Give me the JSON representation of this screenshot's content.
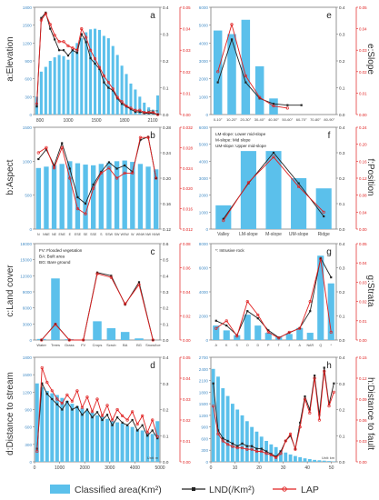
{
  "colors": {
    "bar": "#5bc0eb",
    "lnd": "#222222",
    "lap": "#e02020",
    "frame": "#7a7a7a"
  },
  "side_labels": {
    "a": "a:Elevation",
    "b": "b:Aspect",
    "c": "c:Land cover",
    "d": "d:Distance  to stream",
    "e": "e:Slope",
    "f": "f:Position",
    "g": "g:Strata",
    "h": "h:Distance to fault"
  },
  "legend": {
    "bar": "Classified area(Km²)",
    "lnd": "LND(/Km²)",
    "lap": "LAP"
  },
  "chart_data": [
    {
      "id": "a",
      "type": "bar",
      "title": "",
      "letter": "a",
      "xlabel": "",
      "unit_note": "Unit: m",
      "x_tick_labels": [
        "800",
        "1000",
        "1500",
        "1800",
        "2100"
      ],
      "categories": [
        "800",
        "850",
        "900",
        "950",
        "1000",
        "1050",
        "1100",
        "1150",
        "1200",
        "1250",
        "1300",
        "1350",
        "1400",
        "1450",
        "1500",
        "1550",
        "1600",
        "1650",
        "1700",
        "1750",
        "1800",
        "1850",
        "1900",
        "1950",
        "2000",
        "2050",
        "2100",
        "2150"
      ],
      "ylim_left": [
        0,
        1800
      ],
      "left_ticks": [
        "0",
        "300",
        "600",
        "900",
        "1200",
        "1500",
        "1800"
      ],
      "ylim_r1": [
        0,
        0.4
      ],
      "r1_ticks": [
        "0.0",
        "0.1",
        "0.2",
        "0.3",
        "0.4"
      ],
      "ylim_r2": [
        0,
        0.05
      ],
      "r2_ticks": [
        "0.00",
        "0.01",
        "0.02",
        "0.03",
        "0.04",
        "0.05"
      ],
      "series": [
        {
          "name": "Classified area(Km²)",
          "kind": "bar",
          "axis": "left",
          "values": [
            300,
            720,
            800,
            900,
            960,
            1000,
            980,
            920,
            1100,
            1200,
            1280,
            1380,
            1430,
            1440,
            1420,
            1320,
            1280,
            1150,
            1000,
            820,
            680,
            520,
            420,
            300,
            200,
            120,
            80,
            320
          ]
        },
        {
          "name": "LND(/Km²)",
          "kind": "line",
          "axis": "r1",
          "values": [
            0.03,
            0.36,
            0.38,
            0.32,
            0.28,
            0.24,
            0.24,
            0.22,
            0.24,
            0.23,
            0.3,
            0.27,
            0.21,
            0.19,
            0.17,
            0.12,
            0.1,
            0.09,
            0.06,
            0.04,
            0.03,
            0.02,
            0.01,
            0.01,
            0.005,
            0.005,
            0.005,
            0.0
          ]
        },
        {
          "name": "LAP",
          "kind": "line",
          "axis": "r2",
          "values": [
            0.005,
            0.044,
            0.047,
            0.042,
            0.037,
            0.034,
            0.034,
            0.032,
            0.031,
            0.03,
            0.04,
            0.036,
            0.03,
            0.026,
            0.022,
            0.018,
            0.015,
            0.012,
            0.008,
            0.006,
            0.004,
            0.003,
            0.002,
            0.002,
            0.001,
            0.001,
            0.001,
            0.0
          ]
        }
      ]
    },
    {
      "id": "b",
      "type": "bar",
      "title": "",
      "letter": "b",
      "categories": [
        "N",
        "NNE",
        "NE",
        "ENE",
        "E",
        "ESE",
        "SE",
        "SSE",
        "S",
        "SSW",
        "SW",
        "WSW",
        "W",
        "WNW",
        "NW",
        "NNW"
      ],
      "ylim_left": [
        0,
        1500
      ],
      "left_ticks": [
        "0",
        "500",
        "1000",
        "1500"
      ],
      "ylim_r1": [
        0.12,
        0.28
      ],
      "r1_ticks": [
        "0.12",
        "0.16",
        "0.20",
        "0.24",
        "0.28"
      ],
      "ylim_r2": [
        0.012,
        0.032
      ],
      "r2_ticks": [
        "0.012",
        "0.016",
        "0.020",
        "0.024",
        "0.028",
        "0.032"
      ],
      "series": [
        {
          "name": "Classified area(Km²)",
          "kind": "bar",
          "axis": "left",
          "values": [
            900,
            920,
            940,
            960,
            1000,
            970,
            950,
            940,
            960,
            980,
            1000,
            1010,
            990,
            960,
            920,
            880
          ]
        },
        {
          "name": "LND(/Km²)",
          "kind": "line",
          "axis": "r1",
          "values": [
            0.23,
            0.245,
            0.22,
            0.255,
            0.215,
            0.17,
            0.16,
            0.19,
            0.21,
            0.225,
            0.215,
            0.22,
            0.21,
            0.26,
            0.265,
            0.2
          ]
        },
        {
          "name": "LAP",
          "kind": "line",
          "axis": "r2",
          "values": [
            0.027,
            0.028,
            0.024,
            0.028,
            0.022,
            0.016,
            0.015,
            0.02,
            0.023,
            0.024,
            0.022,
            0.023,
            0.023,
            0.03,
            0.03,
            0.022
          ]
        }
      ]
    },
    {
      "id": "c",
      "type": "bar",
      "title": "",
      "letter": "c",
      "notes": [
        "FV: Flooded vegetation",
        "BA: Built area",
        "BG: Bare ground"
      ],
      "categories": [
        "Water",
        "Trees",
        "Grass",
        "FV",
        "Crops",
        "Scrub",
        "BA",
        "BG",
        "Snow/Ice"
      ],
      "ylim_left": [
        0,
        18000
      ],
      "left_ticks": [
        "0",
        "3000",
        "6000",
        "9000",
        "12000",
        "15000",
        "18000"
      ],
      "ylim_r1": [
        0,
        0.6
      ],
      "r1_ticks": [
        "0.0",
        "0.1",
        "0.2",
        "0.3",
        "0.4",
        "0.5",
        "0.6"
      ],
      "ylim_r2": [
        0,
        0.08
      ],
      "r2_ticks": [
        "0.00",
        "0.02",
        "0.04",
        "0.06",
        "0.08"
      ],
      "series": [
        {
          "name": "Classified area(Km²)",
          "kind": "bar",
          "axis": "left",
          "values": [
            200,
            11500,
            150,
            0,
            3500,
            2200,
            1500,
            300,
            0
          ]
        },
        {
          "name": "LND(/Km²)",
          "kind": "line",
          "axis": "r1",
          "values": [
            0.0,
            0.1,
            0.0,
            0.0,
            0.42,
            0.4,
            0.22,
            0.36,
            0.0
          ]
        },
        {
          "name": "LAP",
          "kind": "line",
          "axis": "r2",
          "values": [
            0.0,
            0.013,
            0.0,
            0.0,
            0.055,
            0.052,
            0.03,
            0.046,
            0.0
          ]
        }
      ]
    },
    {
      "id": "d",
      "type": "bar",
      "title": "",
      "letter": "d",
      "x_tick_labels": [
        "0",
        "1000",
        "2000",
        "3000",
        "4000",
        "5000"
      ],
      "xlim": [
        0,
        5000
      ],
      "unit_note": "Unit: m",
      "ylim_left": [
        0,
        1800
      ],
      "left_ticks": [
        "0",
        "300",
        "600",
        "900",
        "1200",
        "1500",
        "1800"
      ],
      "ylim_r1": [
        0,
        0.4
      ],
      "r1_ticks": [
        "0.0",
        "0.1",
        "0.2",
        "0.3",
        "0.4"
      ],
      "ylim_r2": [
        0,
        0.05
      ],
      "r2_ticks": [
        "0.00",
        "0.01",
        "0.02",
        "0.03",
        "0.04",
        "0.05"
      ],
      "x": [
        100,
        300,
        500,
        700,
        900,
        1100,
        1300,
        1500,
        1700,
        1900,
        2100,
        2300,
        2500,
        2700,
        2900,
        3100,
        3300,
        3500,
        3700,
        3900,
        4100,
        4300,
        4500,
        4700,
        4900
      ],
      "series": [
        {
          "name": "Classified area(Km²)",
          "kind": "bar",
          "axis": "left",
          "values": [
            1350,
            1280,
            1220,
            1180,
            1150,
            1100,
            1050,
            1000,
            960,
            920,
            880,
            850,
            800,
            780,
            740,
            700,
            680,
            660,
            620,
            600,
            560,
            540,
            500,
            480,
            700
          ]
        },
        {
          "name": "LND(/Km²)",
          "kind": "line",
          "axis": "r1",
          "values": [
            0.05,
            0.3,
            0.26,
            0.24,
            0.22,
            0.2,
            0.23,
            0.2,
            0.21,
            0.18,
            0.2,
            0.17,
            0.19,
            0.16,
            0.18,
            0.14,
            0.17,
            0.15,
            0.14,
            0.16,
            0.12,
            0.14,
            0.1,
            0.12,
            0.09
          ]
        },
        {
          "name": "LAP",
          "kind": "line",
          "axis": "r2",
          "values": [
            0.005,
            0.045,
            0.038,
            0.034,
            0.03,
            0.028,
            0.032,
            0.029,
            0.034,
            0.026,
            0.031,
            0.024,
            0.03,
            0.022,
            0.027,
            0.02,
            0.025,
            0.022,
            0.02,
            0.024,
            0.018,
            0.022,
            0.014,
            0.02,
            0.012
          ]
        }
      ]
    },
    {
      "id": "e",
      "type": "bar",
      "title": "",
      "letter": "e",
      "categories": [
        "0-10°",
        "10-20°",
        "20-30°",
        "30-40°",
        "40-50°",
        "50-60°",
        "60-70°",
        "70-80°",
        "80-90°"
      ],
      "ylim_left": [
        0,
        6000
      ],
      "left_ticks": [
        "0",
        "1000",
        "2000",
        "3000",
        "4000",
        "5000",
        "6000"
      ],
      "ylim_r1": [
        0,
        0.4
      ],
      "r1_ticks": [
        "0.0",
        "0.1",
        "0.2",
        "0.3",
        "0.4"
      ],
      "ylim_r2": [
        0,
        0.05
      ],
      "r2_ticks": [
        "0.00",
        "0.01",
        "0.02",
        "0.03",
        "0.04",
        "0.05"
      ],
      "series": [
        {
          "name": "Classified area(Km²)",
          "kind": "bar",
          "axis": "left",
          "values": [
            4700,
            4500,
            5300,
            2700,
            900,
            0,
            0,
            0,
            0
          ]
        },
        {
          "name": "LND(/Km²)",
          "kind": "line",
          "axis": "r1",
          "values": [
            0.12,
            0.28,
            0.12,
            0.06,
            0.04,
            0.035,
            0.035,
            null,
            null
          ]
        },
        {
          "name": "LAP",
          "kind": "line",
          "axis": "r2",
          "values": [
            0.02,
            0.042,
            0.018,
            0.008,
            0.004,
            0.003,
            null,
            null,
            null
          ]
        }
      ]
    },
    {
      "id": "f",
      "type": "bar",
      "title": "",
      "letter": "f",
      "notes": [
        "LM-slope: Lower mid-slope",
        "M-slope: Mid slope",
        "UM-slope: Upper mid-slope"
      ],
      "categories": [
        "Valley",
        "LM-slope",
        "M-slope",
        "UM-slope",
        "Ridge"
      ],
      "ylim_left": [
        0,
        6000
      ],
      "left_ticks": [
        "0",
        "1000",
        "2000",
        "3000",
        "4000",
        "5000",
        "6000"
      ],
      "ylim_r1": [
        0,
        0.4
      ],
      "r1_ticks": [
        "0.0",
        "0.1",
        "0.2",
        "0.3",
        "0.4"
      ],
      "ylim_r2": [
        0,
        0.24
      ],
      "r2_ticks": [
        "0.00",
        "0.04",
        "0.08",
        "0.12",
        "0.16",
        "0.20",
        "0.24"
      ],
      "series": [
        {
          "name": "Classified area(Km²)",
          "kind": "bar",
          "axis": "left",
          "values": [
            1400,
            4600,
            4600,
            3000,
            2400
          ]
        },
        {
          "name": "LND(/Km²)",
          "kind": "line",
          "axis": "r1",
          "values": [
            0.04,
            0.18,
            0.3,
            0.18,
            0.05
          ]
        },
        {
          "name": "LAP",
          "kind": "line",
          "axis": "r2",
          "values": [
            0.02,
            0.11,
            0.17,
            0.1,
            0.04
          ]
        }
      ]
    },
    {
      "id": "g",
      "type": "bar",
      "title": "",
      "letter": "g",
      "notes": [
        "*: Intrusive rock"
      ],
      "categories": [
        "Jr",
        "K",
        "S",
        "O",
        "D",
        "P",
        "T",
        "J",
        "A",
        "NAR",
        "Q",
        "*"
      ],
      "ylim_left": [
        0,
        8000
      ],
      "left_ticks": [
        "0",
        "2000",
        "4000",
        "6000",
        "8000"
      ],
      "ylim_r1": [
        0,
        0.4
      ],
      "r1_ticks": [
        "0.0",
        "0.1",
        "0.2",
        "0.3",
        "0.4"
      ],
      "ylim_r2": [
        0,
        0.05
      ],
      "r2_ticks": [
        "0.00",
        "0.01",
        "0.02",
        "0.03",
        "0.04",
        "0.05"
      ],
      "series": [
        {
          "name": "Classified area(Km²)",
          "kind": "bar",
          "axis": "left",
          "values": [
            1200,
            800,
            400,
            2100,
            1200,
            600,
            300,
            500,
            1000,
            600,
            7000,
            4700
          ]
        },
        {
          "name": "LND(/Km²)",
          "kind": "line",
          "axis": "r1",
          "values": [
            0.08,
            0.06,
            0.02,
            0.12,
            0.09,
            0.04,
            0.01,
            0.03,
            0.05,
            0.12,
            0.34,
            0.26
          ]
        },
        {
          "name": "LAP",
          "kind": "line",
          "axis": "r2",
          "values": [
            0.006,
            0.01,
            0.002,
            0.02,
            0.013,
            0.004,
            0.001,
            0.004,
            0.006,
            0.02,
            0.042,
            0.004
          ]
        }
      ]
    },
    {
      "id": "h",
      "type": "bar",
      "title": "",
      "letter": "h",
      "x_tick_labels": [
        "0",
        "10",
        "20",
        "30",
        "40",
        "50"
      ],
      "xlim": [
        0,
        52
      ],
      "unit_note": "Unit: km",
      "ylim_left": [
        0,
        2700
      ],
      "left_ticks": [
        "0",
        "300",
        "600",
        "900",
        "1200",
        "1500",
        "1800",
        "2100",
        "2400",
        "2700"
      ],
      "ylim_r1": [
        0,
        0.4
      ],
      "r1_ticks": [
        "0.0",
        "0.1",
        "0.2",
        "0.3",
        "0.4"
      ],
      "ylim_r2": [
        0,
        0.15
      ],
      "r2_ticks": [
        "0.00",
        "0.03",
        "0.06",
        "0.09",
        "0.12",
        "0.15"
      ],
      "x": [
        1,
        3,
        5,
        7,
        9,
        11,
        13,
        15,
        17,
        19,
        21,
        23,
        25,
        27,
        29,
        31,
        33,
        35,
        37,
        39,
        41,
        43,
        45,
        47,
        49,
        51
      ],
      "series": [
        {
          "name": "Classified area(Km²)",
          "kind": "bar",
          "axis": "left",
          "values": [
            2400,
            2200,
            1900,
            1700,
            1500,
            1350,
            1200,
            1050,
            900,
            780,
            650,
            540,
            450,
            380,
            300,
            240,
            190,
            150,
            120,
            90,
            70,
            50,
            40,
            30,
            20,
            10
          ]
        },
        {
          "name": "LND(/Km²)",
          "kind": "line",
          "axis": "r1",
          "values": [
            0.3,
            0.12,
            0.09,
            0.08,
            0.07,
            0.06,
            0.07,
            0.06,
            0.06,
            0.05,
            0.05,
            0.04,
            0.03,
            0.02,
            0.04,
            0.08,
            0.1,
            0.05,
            0.15,
            0.25,
            0.2,
            0.33,
            0.18,
            0.36,
            0.22,
            0.3
          ]
        },
        {
          "name": "LAP",
          "kind": "line",
          "axis": "r2",
          "values": [
            0.08,
            0.04,
            0.03,
            0.025,
            0.022,
            0.02,
            0.02,
            0.018,
            0.018,
            0.015,
            0.015,
            0.012,
            0.01,
            0.006,
            0.012,
            0.03,
            0.04,
            0.018,
            0.05,
            0.09,
            0.07,
            0.12,
            0.06,
            0.13,
            0.08,
            0.1
          ]
        }
      ]
    }
  ]
}
